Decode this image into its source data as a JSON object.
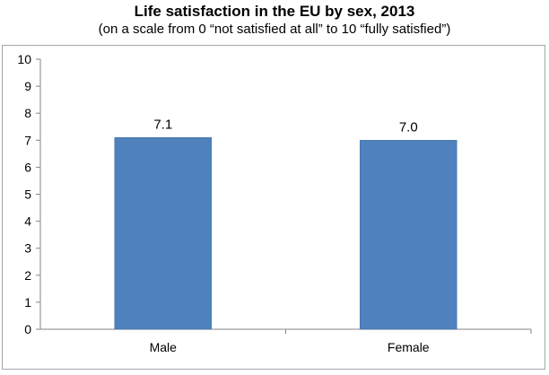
{
  "chart_data": {
    "type": "bar",
    "title": "Life satisfaction in the EU by sex, 2013",
    "subtitle": "(on a scale from 0 “not satisfied at all” to 10 “fully satisfied”)",
    "categories": [
      "Male",
      "Female"
    ],
    "values": [
      7.1,
      7.0
    ],
    "value_labels": [
      "7.1",
      "7.0"
    ],
    "xlabel": "",
    "ylabel": "",
    "ylim": [
      0,
      10
    ],
    "yticks": [
      "0",
      "1",
      "2",
      "3",
      "4",
      "5",
      "6",
      "7",
      "8",
      "9",
      "10"
    ],
    "grid": false,
    "bar_color": "#4f81bd"
  }
}
